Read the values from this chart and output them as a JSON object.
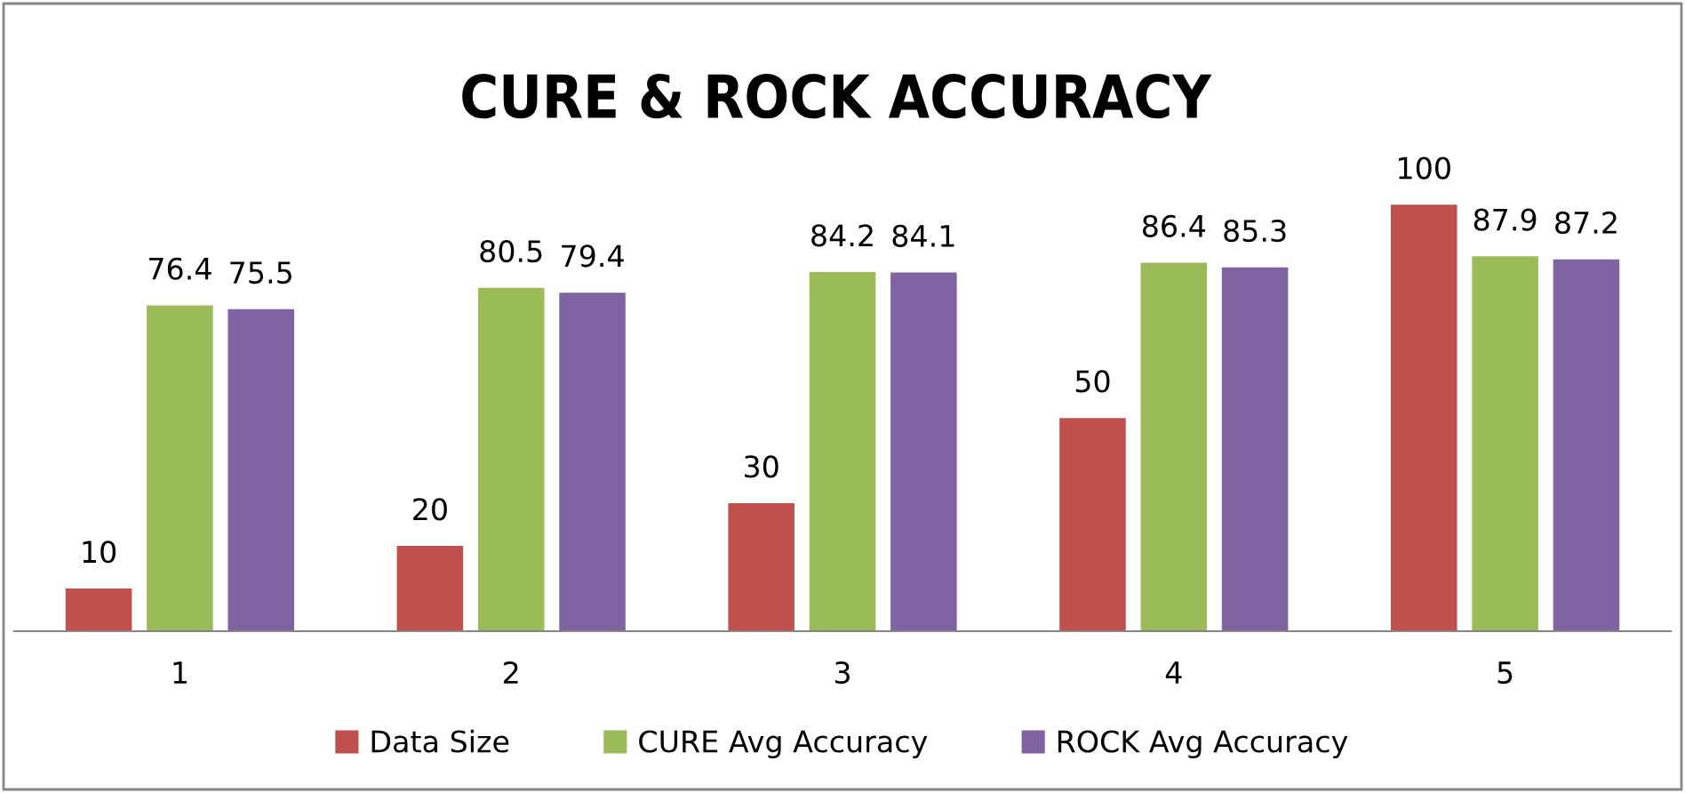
{
  "chart_data": {
    "type": "bar",
    "title": "CURE & ROCK ACCURACY",
    "categories": [
      "1",
      "2",
      "3",
      "4",
      "5"
    ],
    "series": [
      {
        "name": "Data Size",
        "color": "#c0504d",
        "values": [
          10,
          20,
          30,
          50,
          100
        ]
      },
      {
        "name": "CURE Avg Accuracy",
        "color": "#9bbb59",
        "values": [
          76.4,
          80.5,
          84.2,
          86.4,
          87.9
        ]
      },
      {
        "name": "ROCK Avg Accuracy",
        "color": "#8064a2",
        "values": [
          75.5,
          79.4,
          84.1,
          85.3,
          87.2
        ]
      }
    ],
    "data_labels": true,
    "legend": "bottom",
    "grid": false,
    "tick_labels": "x"
  }
}
